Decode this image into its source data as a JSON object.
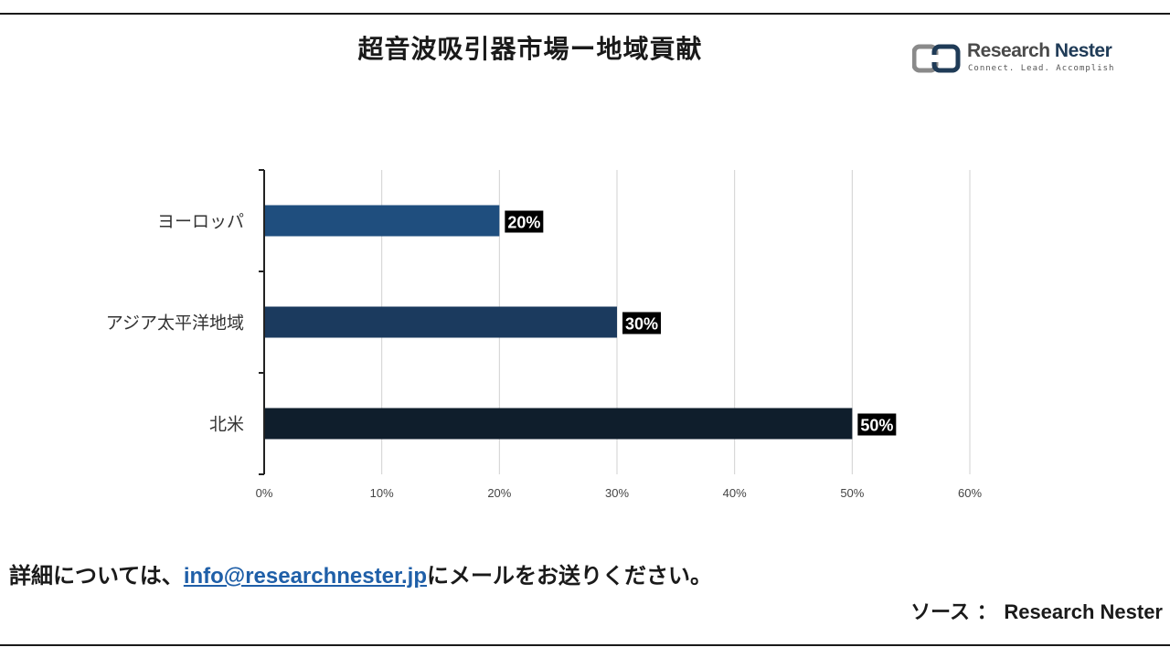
{
  "header": {
    "title": "超音波吸引器市場ー地域貢献"
  },
  "logo": {
    "brand_part1": "Research",
    "brand_part2": "Nester",
    "tagline": "Connect. Lead. Accomplish"
  },
  "chart_data": {
    "type": "bar",
    "orientation": "horizontal",
    "categories": [
      "ヨーロッパ",
      "アジア太平洋地域",
      "北米"
    ],
    "values": [
      20,
      30,
      50
    ],
    "data_labels": [
      "20%",
      "30%",
      "50%"
    ],
    "bar_colors": [
      "#1f4e7e",
      "#1b3a5e",
      "#0f1e2c"
    ],
    "x_ticks": [
      "0%",
      "10%",
      "20%",
      "30%",
      "40%",
      "50%",
      "60%"
    ],
    "xlim": [
      0,
      60
    ],
    "grid": true,
    "legend": "none"
  },
  "footer": {
    "prefix": "詳細については、",
    "email": "info@researchnester.jp",
    "suffix": "にメールをお送りください。"
  },
  "source": {
    "label": "ソース ：",
    "name": "Research Nester"
  },
  "colors": {
    "link": "#1f5fa8",
    "gridline": "#d0d0d0",
    "axis": "#222222",
    "label_box": "#000000"
  }
}
